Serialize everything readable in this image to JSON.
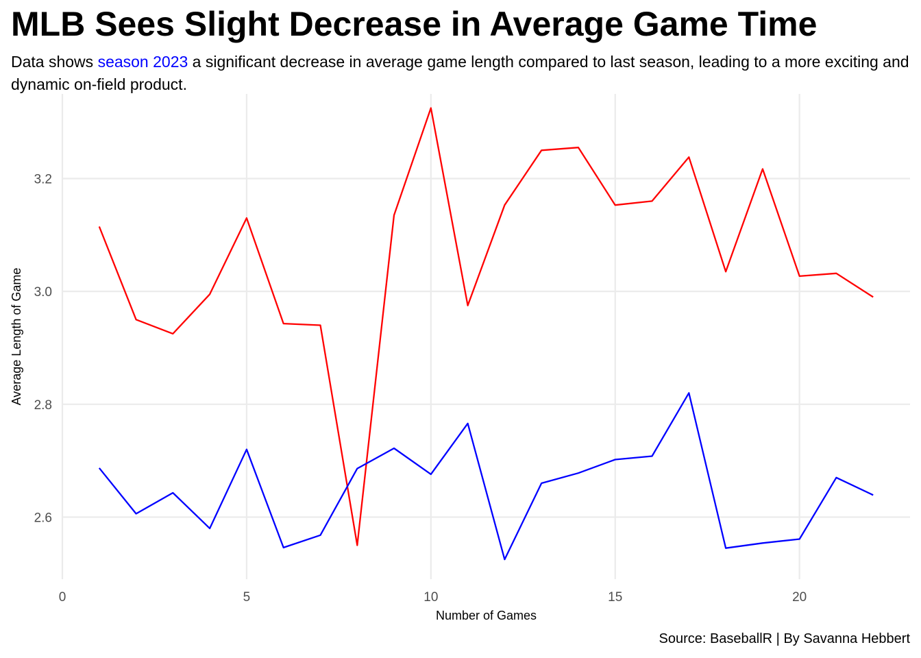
{
  "title": "MLB Sees Slight Decrease in Average Game Time",
  "subtitle": {
    "before": "Data shows ",
    "highlight": "season 2023",
    "after": " a significant decrease in average game length compared to last season, leading to a more exciting and dynamic on-field product."
  },
  "caption": "Source: BaseballR | By Savanna Hebbert",
  "colors": {
    "highlight": "#0000ff",
    "series_2022": "#ff0000",
    "series_2023": "#0000ff",
    "grid": "#ebebeb"
  },
  "chart_data": {
    "type": "line",
    "xlabel": "Number of Games",
    "ylabel": "Average Length of Game",
    "xlim": [
      0,
      23
    ],
    "ylim": [
      2.49,
      3.35
    ],
    "x_ticks": [
      0,
      5,
      10,
      15,
      20
    ],
    "y_ticks": [
      2.6,
      2.8,
      3.0,
      3.2
    ],
    "x_tick_labels": [
      "0",
      "5",
      "10",
      "15",
      "20"
    ],
    "y_tick_labels": [
      "2.6",
      "2.8",
      "3.0",
      "3.2"
    ],
    "grid": true,
    "legend": "none",
    "x": [
      1,
      2,
      3,
      4,
      5,
      6,
      7,
      8,
      9,
      10,
      11,
      12,
      13,
      14,
      15,
      16,
      17,
      18,
      19,
      20,
      21,
      22
    ],
    "series": [
      {
        "color": "#ff0000",
        "values": [
          3.115,
          2.95,
          2.925,
          2.995,
          3.13,
          2.943,
          2.94,
          2.55,
          3.135,
          3.325,
          2.975,
          3.153,
          3.25,
          3.255,
          3.153,
          3.16,
          3.238,
          3.035,
          3.217,
          3.027,
          3.032,
          2.99
        ]
      },
      {
        "color": "#0000ff",
        "values": [
          2.687,
          2.606,
          2.643,
          2.58,
          2.72,
          2.546,
          2.568,
          2.686,
          2.722,
          2.676,
          2.766,
          2.525,
          2.66,
          2.678,
          2.702,
          2.708,
          2.82,
          2.545,
          2.554,
          2.561,
          2.67,
          2.639
        ]
      }
    ]
  }
}
